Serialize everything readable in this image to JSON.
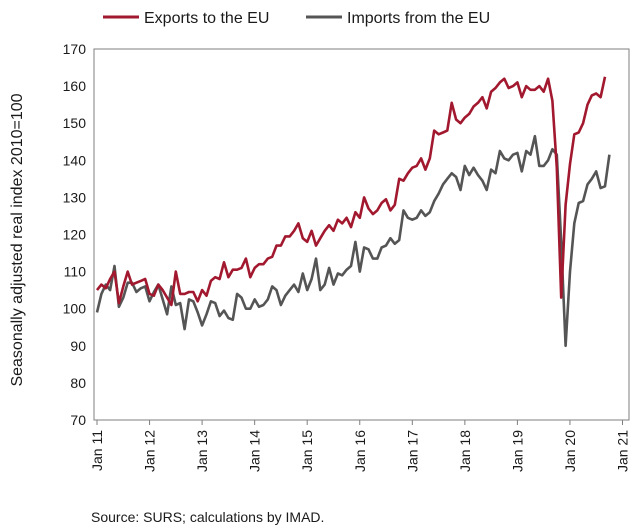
{
  "chart_data": {
    "type": "line",
    "ylabel": "Seasonally adjusted real index 2010=100",
    "ylim": [
      70,
      170
    ],
    "yticks": [
      70,
      80,
      90,
      100,
      110,
      120,
      130,
      140,
      150,
      160,
      170
    ],
    "xticks": [
      "Jan 11",
      "Jan 12",
      "Jan 13",
      "Jan 14",
      "Jan 15",
      "Jan 16",
      "Jan 17",
      "Jan 18",
      "Jan 19",
      "Jan 20",
      "Jan 21"
    ],
    "x_start": "Jan 11",
    "x_end": "Jan 21",
    "grid": false,
    "legend_position": "top",
    "source": "Source: SURS; calculations by IMAD.",
    "series": [
      {
        "name": "Exports to the EU",
        "color": "#a2182e",
        "values": [
          105.0,
          106.5,
          105.5,
          108.0,
          110.0,
          101.5,
          106.0,
          110.0,
          106.5,
          107.0,
          107.5,
          108.0,
          104.0,
          103.5,
          106.5,
          105.0,
          103.0,
          101.0,
          110.0,
          104.0,
          104.0,
          104.5,
          104.5,
          102.0,
          105.0,
          103.5,
          107.5,
          108.5,
          108.0,
          112.5,
          108.5,
          110.5,
          110.5,
          111.0,
          113.5,
          108.5,
          111.0,
          112.0,
          112.0,
          113.5,
          114.0,
          117.0,
          117.0,
          119.5,
          119.5,
          121.0,
          123.0,
          119.0,
          118.0,
          121.0,
          117.0,
          119.0,
          121.0,
          122.5,
          121.0,
          124.0,
          123.0,
          124.5,
          122.0,
          126.0,
          124.5,
          130.0,
          127.0,
          125.5,
          126.5,
          128.5,
          129.5,
          126.5,
          128.0,
          135.0,
          134.5,
          136.5,
          138.0,
          138.5,
          140.5,
          137.5,
          140.5,
          148.0,
          147.0,
          147.5,
          148.0,
          155.5,
          151.0,
          150.0,
          151.5,
          152.5,
          154.5,
          155.5,
          157.0,
          154.0,
          158.5,
          159.5,
          161.0,
          162.0,
          159.5,
          160.0,
          161.0,
          157.0,
          160.0,
          159.0,
          159.0,
          160.0,
          158.5,
          162.0,
          156.0,
          138.0,
          103.0,
          128.0,
          139.0,
          147.0,
          147.5,
          150.0,
          155.0,
          157.5,
          158.0,
          157.0,
          162.5
        ]
      },
      {
        "name": "Imports from the EU",
        "color": "#555555",
        "values": [
          99.0,
          104.0,
          106.5,
          105.0,
          111.5,
          100.5,
          103.0,
          107.0,
          107.0,
          104.5,
          105.5,
          106.0,
          102.0,
          104.5,
          106.5,
          102.5,
          98.5,
          106.0,
          101.0,
          101.5,
          94.5,
          102.5,
          102.0,
          99.0,
          95.5,
          98.5,
          102.0,
          101.5,
          98.0,
          99.5,
          97.5,
          97.0,
          104.0,
          103.0,
          100.0,
          100.0,
          102.5,
          100.5,
          101.0,
          102.5,
          106.0,
          105.0,
          101.0,
          103.5,
          105.0,
          106.5,
          104.5,
          109.5,
          105.0,
          108.0,
          113.5,
          105.0,
          106.5,
          111.0,
          106.5,
          109.5,
          109.0,
          110.5,
          111.5,
          118.0,
          110.0,
          116.5,
          116.0,
          113.5,
          113.5,
          116.5,
          117.0,
          119.0,
          117.5,
          118.5,
          126.5,
          124.5,
          124.0,
          124.5,
          126.5,
          125.0,
          126.0,
          129.0,
          131.0,
          133.5,
          135.0,
          136.5,
          135.5,
          132.0,
          138.5,
          136.0,
          138.0,
          136.0,
          134.5,
          132.0,
          137.5,
          136.5,
          142.5,
          140.5,
          140.0,
          141.5,
          142.0,
          137.0,
          142.5,
          141.5,
          146.5,
          138.5,
          138.5,
          140.0,
          143.0,
          141.5,
          118.0,
          90.0,
          110.0,
          123.0,
          128.5,
          129.0,
          133.5,
          135.0,
          137.0,
          132.5,
          133.0,
          141.5
        ]
      }
    ]
  }
}
